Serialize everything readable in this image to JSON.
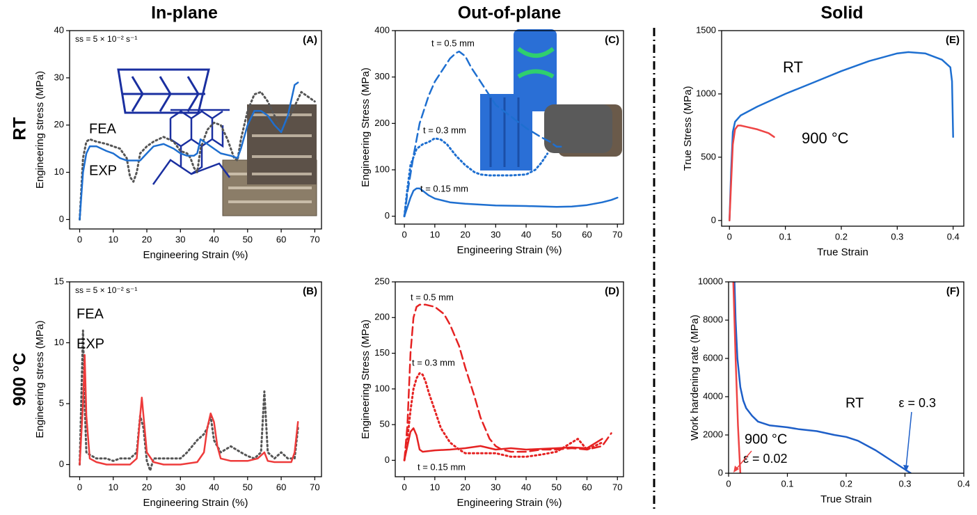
{
  "headers": [
    "In-plane",
    "Out-of-plane",
    "Solid"
  ],
  "row_labels": [
    "RT",
    "900 °C"
  ],
  "chart_data": [
    {
      "type": "line",
      "panel": "(A)",
      "xlabel": "Engineering Strain (%)",
      "ylabel": "Engineering stress (MPa)",
      "xlim": [
        -3,
        72
      ],
      "ylim": [
        -2,
        40
      ],
      "xticks": [
        0,
        10,
        20,
        30,
        40,
        50,
        60,
        70
      ],
      "yticks": [
        0,
        10,
        20,
        30,
        40
      ],
      "grid": false,
      "annotations": [
        "ss = 5 × 10⁻² s⁻¹"
      ],
      "series": [
        {
          "name": "FEA",
          "color": "#555555",
          "line_style": "dotted",
          "x": [
            0,
            1,
            2,
            3,
            5,
            8,
            10,
            12,
            14,
            15,
            16,
            17,
            18,
            20,
            22,
            25,
            28,
            30,
            32,
            33,
            34,
            35,
            36,
            38,
            40,
            42,
            44,
            46,
            47,
            48,
            50,
            52,
            54,
            56,
            58,
            60,
            62,
            64,
            66,
            68,
            70
          ],
          "values": [
            0,
            13,
            16.5,
            17,
            16.5,
            16,
            15.5,
            15,
            13,
            9,
            8,
            10,
            14,
            15.5,
            16.5,
            17.5,
            16.5,
            14.5,
            14,
            13,
            11,
            10,
            15,
            19,
            20.5,
            20,
            17,
            13,
            12.5,
            17,
            23,
            26.5,
            27,
            25,
            22,
            19,
            21,
            24,
            27,
            26,
            25
          ]
        },
        {
          "name": "EXP",
          "color": "#1e6fd0",
          "line_style": "solid",
          "x": [
            0,
            1,
            2,
            3,
            5,
            8,
            10,
            12,
            14,
            16,
            18,
            20,
            22,
            25,
            28,
            30,
            32,
            34,
            35,
            36,
            38,
            40,
            42,
            45,
            47,
            48,
            50,
            52,
            54,
            56,
            58,
            60,
            62,
            64,
            65
          ],
          "values": [
            0,
            10,
            14,
            15.5,
            15.5,
            14.5,
            14,
            13,
            12.5,
            12.5,
            12.5,
            14,
            15.5,
            16,
            15,
            14,
            13.5,
            13.5,
            14,
            17,
            16,
            15,
            14,
            13.5,
            13,
            15,
            20,
            23,
            23,
            22,
            20,
            18.5,
            22,
            28.5,
            29
          ]
        }
      ]
    },
    {
      "type": "line",
      "panel": "(B)",
      "xlabel": "Engineering Strain (%)",
      "ylabel": "Engineering stress (MPa)",
      "xlim": [
        -3,
        72
      ],
      "ylim": [
        -1,
        15
      ],
      "xticks": [
        0,
        10,
        20,
        30,
        40,
        50,
        60,
        70
      ],
      "yticks": [
        0,
        5,
        10,
        15
      ],
      "grid": false,
      "annotations": [
        "ss = 5 × 10⁻² s⁻¹"
      ],
      "series": [
        {
          "name": "FEA",
          "color": "#555555",
          "line_style": "dotted",
          "x": [
            0,
            1,
            1.5,
            2,
            3,
            5,
            8,
            10,
            12,
            15,
            17,
            18,
            19,
            20,
            21,
            22,
            25,
            28,
            30,
            32,
            35,
            37,
            38,
            39,
            40,
            42,
            45,
            48,
            50,
            52,
            54,
            55,
            56,
            58,
            60,
            62,
            64,
            65
          ],
          "values": [
            0,
            11,
            5,
            1,
            0.8,
            0.5,
            0.5,
            0.3,
            0.5,
            0.5,
            1,
            4,
            3,
            0.3,
            -0.5,
            0.5,
            0.5,
            0.5,
            0.5,
            1,
            2,
            2.5,
            3,
            4,
            2,
            1,
            1.5,
            1,
            0.7,
            0.5,
            1,
            6,
            1,
            0.5,
            1,
            0.5,
            0.5,
            3
          ]
        },
        {
          "name": "EXP",
          "color": "#ee3b3b",
          "line_style": "solid",
          "x": [
            0,
            1,
            1.5,
            2,
            3,
            5,
            8,
            10,
            15,
            17,
            18,
            18.5,
            19,
            20,
            22,
            25,
            30,
            35,
            37,
            38,
            39,
            40,
            41,
            42,
            45,
            50,
            53,
            55,
            56,
            58,
            60,
            63,
            64,
            65
          ],
          "values": [
            0,
            5,
            9,
            4,
            0.5,
            0.2,
            0,
            0,
            0,
            0.5,
            4,
            5.5,
            4,
            1,
            0.2,
            0,
            0,
            0.2,
            1,
            3,
            4.2,
            3.5,
            1.5,
            0.5,
            0.3,
            0.3,
            0.5,
            1,
            0.3,
            0.2,
            0.2,
            0.2,
            1,
            3.5
          ]
        }
      ]
    },
    {
      "type": "line",
      "panel": "(C)",
      "xlabel": "Engineering Strain (%)",
      "ylabel": "Engineering Stress (MPa)",
      "xlim": [
        -3,
        72
      ],
      "ylim": [
        -17,
        400
      ],
      "xticks": [
        0,
        10,
        20,
        30,
        40,
        50,
        60,
        70
      ],
      "yticks": [
        0,
        100,
        200,
        300,
        400
      ],
      "grid": false,
      "annotations": [],
      "series": [
        {
          "name": "t = 0.5 mm",
          "color": "#1e6fd0",
          "line_style": "dashed",
          "x": [
            0,
            1,
            3,
            5,
            8,
            10,
            13,
            15,
            17,
            18,
            20,
            22,
            25,
            28,
            30,
            35,
            40,
            45,
            48,
            50,
            52
          ],
          "values": [
            0,
            50,
            130,
            200,
            260,
            290,
            320,
            340,
            352,
            355,
            345,
            320,
            290,
            260,
            240,
            215,
            190,
            170,
            160,
            150,
            150
          ]
        },
        {
          "name": "t = 0.3 mm",
          "color": "#1e6fd0",
          "line_style": "dotted",
          "x": [
            0,
            1,
            2,
            4,
            6,
            8,
            10,
            12,
            14,
            17,
            20,
            23,
            25,
            28,
            30,
            35,
            40,
            43,
            45,
            47
          ],
          "values": [
            0,
            60,
            110,
            145,
            155,
            160,
            168,
            165,
            155,
            130,
            110,
            95,
            90,
            88,
            88,
            88,
            90,
            100,
            115,
            135
          ]
        },
        {
          "name": "t = 0.15 mm",
          "color": "#1e6fd0",
          "line_style": "solid",
          "x": [
            0,
            1,
            2,
            3,
            4,
            5,
            6,
            8,
            10,
            15,
            20,
            30,
            40,
            50,
            55,
            60,
            65,
            68,
            70
          ],
          "values": [
            0,
            20,
            40,
            55,
            60,
            60,
            55,
            45,
            38,
            30,
            27,
            23,
            22,
            20,
            21,
            24,
            30,
            35,
            40
          ]
        }
      ]
    },
    {
      "type": "line",
      "panel": "(D)",
      "xlabel": "Engineering Strain (%)",
      "ylabel": "Engineering Stress (MPa)",
      "xlim": [
        -3,
        72
      ],
      "ylim": [
        -23,
        250
      ],
      "xticks": [
        0,
        10,
        20,
        30,
        40,
        50,
        60,
        70
      ],
      "yticks": [
        0,
        50,
        100,
        150,
        200,
        250
      ],
      "grid": false,
      "annotations": [],
      "series": [
        {
          "name": "t = 0.5 mm",
          "color": "#e52222",
          "line_style": "dashed",
          "x": [
            0,
            1,
            2,
            3,
            4,
            5,
            7,
            10,
            13,
            15,
            18,
            20,
            23,
            25,
            28,
            30,
            32,
            35,
            40,
            45,
            50,
            55,
            60,
            65,
            68
          ],
          "values": [
            0,
            50,
            150,
            200,
            215,
            218,
            218,
            215,
            205,
            190,
            160,
            130,
            90,
            60,
            30,
            20,
            15,
            12,
            12,
            15,
            15,
            17,
            15,
            20,
            38
          ]
        },
        {
          "name": "t = 0.3 mm",
          "color": "#e52222",
          "line_style": "dotted",
          "x": [
            0,
            1,
            2,
            3,
            4,
            5,
            6,
            7,
            8,
            10,
            12,
            15,
            18,
            20,
            25,
            30,
            35,
            40,
            45,
            50,
            55,
            57,
            60,
            65
          ],
          "values": [
            0,
            30,
            70,
            100,
            115,
            122,
            120,
            110,
            95,
            70,
            45,
            25,
            15,
            10,
            10,
            10,
            5,
            5,
            8,
            12,
            25,
            30,
            15,
            25
          ]
        },
        {
          "name": "t = 0.15 mm",
          "color": "#e52222",
          "line_style": "solid",
          "x": [
            0,
            1,
            2,
            3,
            4,
            5,
            6,
            8,
            10,
            15,
            20,
            25,
            30,
            35,
            40,
            45,
            50,
            55,
            60,
            65
          ],
          "values": [
            0,
            20,
            40,
            45,
            35,
            15,
            12,
            13,
            14,
            15,
            17,
            20,
            15,
            17,
            15,
            16,
            17,
            18,
            17,
            30
          ]
        }
      ]
    },
    {
      "type": "line",
      "panel": "(E)",
      "xlabel": "True Strain",
      "ylabel": "True Stress (MPa)",
      "xlim": [
        -0.014,
        0.419
      ],
      "ylim": [
        -45,
        1500
      ],
      "xticks": [
        0,
        0.1,
        0.2,
        0.3,
        0.4
      ],
      "yticks": [
        0,
        500,
        1000,
        1500
      ],
      "grid": false,
      "annotations": [],
      "series": [
        {
          "name": "RT",
          "color": "#1e6fd0",
          "line_style": "solid",
          "x": [
            0,
            0.003,
            0.006,
            0.01,
            0.02,
            0.05,
            0.1,
            0.15,
            0.2,
            0.25,
            0.3,
            0.32,
            0.35,
            0.38,
            0.395,
            0.398,
            0.4
          ],
          "values": [
            0,
            400,
            700,
            780,
            830,
            900,
            1000,
            1090,
            1180,
            1260,
            1320,
            1330,
            1320,
            1270,
            1210,
            1100,
            660
          ]
        },
        {
          "name": "900 °C",
          "color": "#ee4444",
          "line_style": "solid",
          "x": [
            0,
            0.003,
            0.006,
            0.01,
            0.015,
            0.02,
            0.03,
            0.05,
            0.07,
            0.08
          ],
          "values": [
            0,
            300,
            600,
            720,
            750,
            750,
            740,
            720,
            690,
            660
          ]
        }
      ]
    },
    {
      "type": "line",
      "panel": "(F)",
      "xlabel": "True Strain",
      "ylabel": "Work hardening rate (MPa)",
      "xlim": [
        0,
        0.4
      ],
      "ylim": [
        0,
        10000
      ],
      "xticks": [
        0,
        0.1,
        0.2,
        0.3,
        0.4
      ],
      "yticks": [
        0,
        2000,
        4000,
        6000,
        8000,
        10000
      ],
      "grid": false,
      "annotations": [
        "ε = 0.3",
        "ε = 0.02"
      ],
      "series": [
        {
          "name": "RT",
          "color": "#1e5fc8",
          "line_style": "solid",
          "x": [
            0.01,
            0.012,
            0.015,
            0.02,
            0.025,
            0.03,
            0.04,
            0.05,
            0.07,
            0.1,
            0.12,
            0.15,
            0.18,
            0.2,
            0.22,
            0.25,
            0.27,
            0.29,
            0.3,
            0.305,
            0.31
          ],
          "values": [
            10000,
            8000,
            6000,
            4500,
            3800,
            3400,
            3000,
            2700,
            2500,
            2400,
            2300,
            2200,
            2000,
            1900,
            1700,
            1200,
            800,
            400,
            200,
            100,
            0
          ]
        },
        {
          "name": "900 °C",
          "color": "#ee4444",
          "line_style": "solid",
          "x": [
            0.008,
            0.012,
            0.016,
            0.02
          ],
          "values": [
            10000,
            6000,
            2500,
            0
          ]
        }
      ]
    }
  ]
}
